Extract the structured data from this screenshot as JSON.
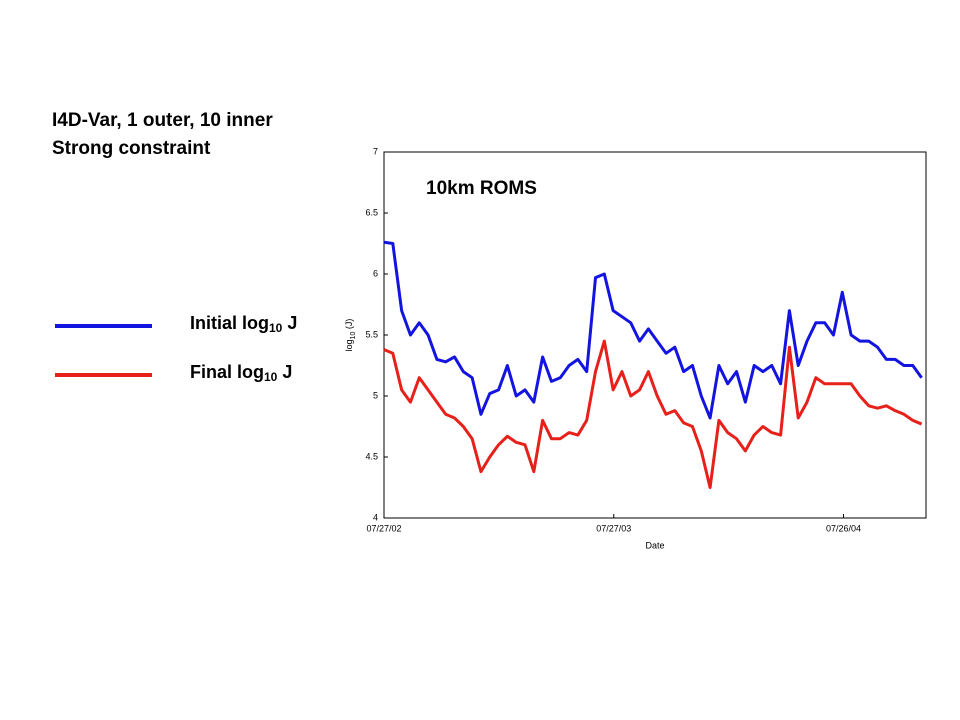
{
  "chart_data": {
    "type": "line",
    "heading": [
      "I4D-Var, 1 outer, 10 inner",
      "Strong constraint"
    ],
    "annotation": "10km ROMS",
    "xlabel": "Date",
    "ylabel": [
      "log",
      "10",
      " (J)"
    ],
    "x": [
      "2002-07-27",
      "2002-08-10",
      "2002-08-24",
      "2002-09-07",
      "2002-09-21",
      "2002-10-05",
      "2002-10-19",
      "2002-11-02",
      "2002-11-16",
      "2002-11-30",
      "2002-12-14",
      "2002-12-28",
      "2003-01-11",
      "2003-01-25",
      "2003-02-08",
      "2003-02-22",
      "2003-03-08",
      "2003-03-22",
      "2003-04-05",
      "2003-04-19",
      "2003-05-03",
      "2003-05-17",
      "2003-05-31",
      "2003-06-14",
      "2003-06-28",
      "2003-07-12",
      "2003-07-26",
      "2003-08-09",
      "2003-08-23",
      "2003-09-06",
      "2003-09-20",
      "2003-10-04",
      "2003-10-18",
      "2003-11-01",
      "2003-11-15",
      "2003-11-29",
      "2003-12-13",
      "2003-12-27",
      "2004-01-10",
      "2004-01-24",
      "2004-02-07",
      "2004-02-21",
      "2004-03-06",
      "2004-03-20",
      "2004-04-03",
      "2004-04-17",
      "2004-05-01",
      "2004-05-15",
      "2004-05-29",
      "2004-06-12",
      "2004-06-26",
      "2004-07-10",
      "2004-07-24",
      "2004-08-07",
      "2004-08-21",
      "2004-09-04",
      "2004-09-18",
      "2004-10-02",
      "2004-10-16",
      "2004-10-30",
      "2004-11-13",
      "2004-11-27"
    ],
    "series": [
      {
        "name": [
          "Initial log",
          "10",
          " J"
        ],
        "color": "#1414e0",
        "values": [
          6.26,
          6.25,
          5.7,
          5.5,
          5.6,
          5.5,
          5.3,
          5.28,
          5.32,
          5.2,
          5.15,
          4.85,
          5.02,
          5.05,
          5.25,
          5.0,
          5.05,
          4.95,
          5.32,
          5.12,
          5.15,
          5.25,
          5.3,
          5.2,
          5.97,
          6.0,
          5.7,
          5.65,
          5.6,
          5.45,
          5.55,
          5.45,
          5.35,
          5.4,
          5.2,
          5.25,
          5.0,
          4.82,
          5.25,
          5.1,
          5.2,
          4.95,
          5.25,
          5.2,
          5.25,
          5.1,
          5.7,
          5.25,
          5.45,
          5.6,
          5.6,
          5.5,
          5.85,
          5.5,
          5.45,
          5.45,
          5.4,
          5.3,
          5.3,
          5.25,
          5.25,
          5.15
        ]
      },
      {
        "name": [
          "Final log",
          "10",
          " J"
        ],
        "color": "#e8201a",
        "values": [
          5.38,
          5.35,
          5.05,
          4.95,
          5.15,
          5.05,
          4.95,
          4.85,
          4.82,
          4.75,
          4.65,
          4.38,
          4.5,
          4.6,
          4.67,
          4.62,
          4.6,
          4.38,
          4.8,
          4.65,
          4.65,
          4.7,
          4.68,
          4.8,
          5.2,
          5.45,
          5.05,
          5.2,
          5.0,
          5.05,
          5.2,
          5.0,
          4.85,
          4.88,
          4.78,
          4.75,
          4.55,
          4.25,
          4.8,
          4.7,
          4.65,
          4.55,
          4.68,
          4.75,
          4.7,
          4.68,
          5.4,
          4.82,
          4.95,
          5.15,
          5.1,
          5.1,
          5.1,
          5.1,
          5.0,
          4.92,
          4.9,
          4.92,
          4.88,
          4.85,
          4.8,
          4.77
        ]
      }
    ],
    "xlim": [
      "2002-07-27",
      "2004-12-04"
    ],
    "xticks": [
      {
        "value": "2002-07-27",
        "label": "07/27/02"
      },
      {
        "value": "2003-07-27",
        "label": "07/27/03"
      },
      {
        "value": "2004-07-26",
        "label": "07/26/04"
      }
    ],
    "ylim": [
      4,
      7
    ],
    "yticks": [
      4,
      4.5,
      5,
      5.5,
      6,
      6.5,
      7
    ],
    "grid": false
  }
}
